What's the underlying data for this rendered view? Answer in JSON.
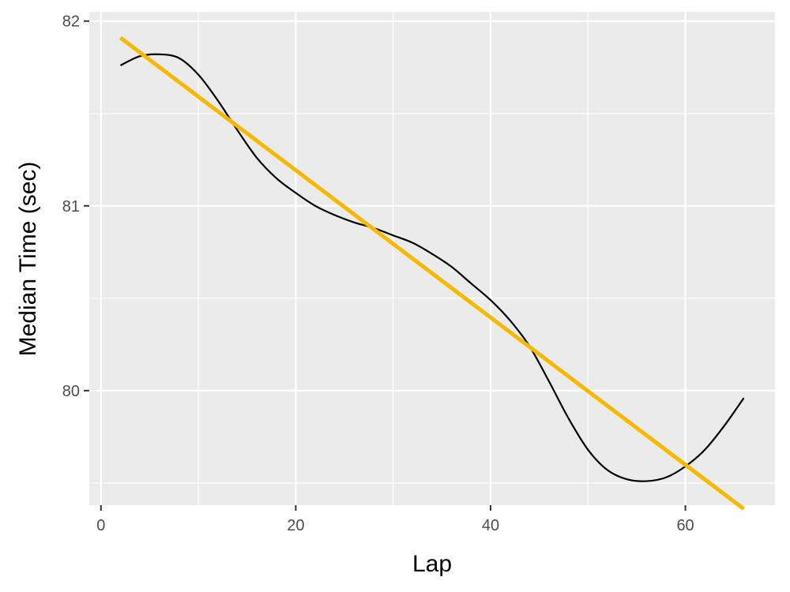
{
  "chart_data": {
    "type": "line",
    "xlabel": "Lap",
    "ylabel": "Median Time (sec)",
    "xlim": [
      -1.2,
      69.2
    ],
    "ylim": [
      79.38,
      82.05
    ],
    "x_ticks": [
      0,
      20,
      40,
      60
    ],
    "x_tick_labels": [
      "0",
      "20",
      "40",
      "60"
    ],
    "y_ticks": [
      80,
      81,
      82
    ],
    "y_tick_labels": [
      "80",
      "81",
      "82"
    ],
    "x_minor_ticks": [
      10,
      30,
      50
    ],
    "y_minor_ticks": [
      79.5,
      80.5,
      81.5
    ],
    "grid": true,
    "legend": "none",
    "series": [
      {
        "kind": "smooth",
        "color": "#000000",
        "x": [
          2,
          4,
          6,
          8,
          10,
          12,
          14,
          16,
          18,
          20,
          22,
          24,
          26,
          28,
          30,
          32,
          34,
          36,
          38,
          40,
          42,
          44,
          46,
          48,
          50,
          52,
          54,
          56,
          58,
          60,
          62,
          64,
          66
        ],
        "y": [
          81.76,
          81.81,
          81.82,
          81.8,
          81.71,
          81.57,
          81.41,
          81.26,
          81.15,
          81.07,
          81.0,
          80.95,
          80.91,
          80.88,
          80.84,
          80.8,
          80.74,
          80.67,
          80.58,
          80.49,
          80.38,
          80.24,
          80.05,
          79.85,
          79.68,
          79.57,
          79.52,
          79.51,
          79.53,
          79.59,
          79.68,
          79.81,
          79.96
        ]
      },
      {
        "kind": "linear-fit",
        "color": "#F7B800",
        "x": [
          2,
          66
        ],
        "y": [
          81.91,
          79.36
        ]
      }
    ]
  }
}
